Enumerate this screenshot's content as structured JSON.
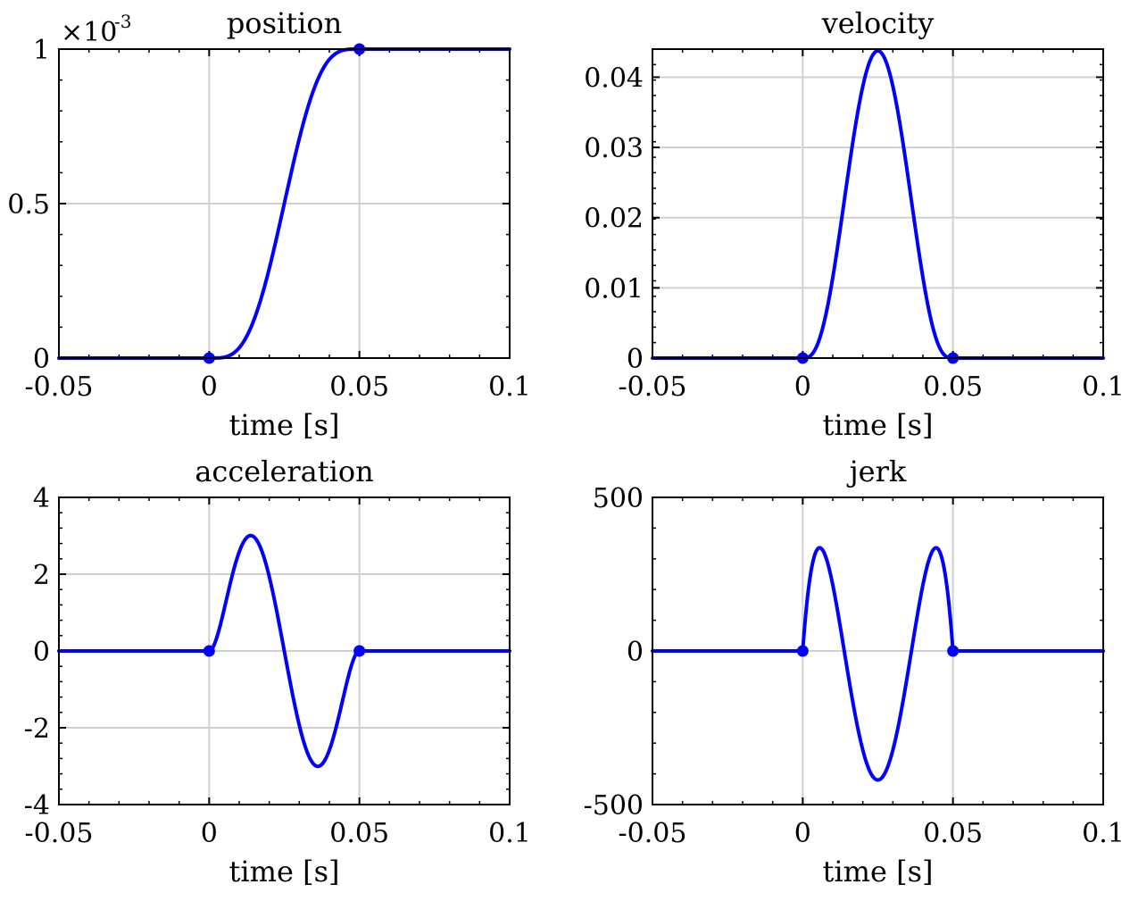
{
  "figure": {
    "line_color": "#0000ff",
    "grid_color": "#d0d0d0",
    "axis_color": "#000000"
  },
  "chart_data": [
    {
      "type": "line",
      "title": "position",
      "xlabel": "time [s]",
      "ylabel": "",
      "xlim": [
        -0.05,
        0.1
      ],
      "ylim": [
        0,
        0.001
      ],
      "y_exponent_base": "×10",
      "y_exponent_power": "-3",
      "xticks": [
        -0.05,
        0,
        0.05,
        0.1
      ],
      "xtick_labels": [
        "-0.05",
        "0",
        "0.05",
        "0.1"
      ],
      "yticks": [
        0,
        0.0005,
        0.001
      ],
      "ytick_labels": [
        "0",
        "0.5",
        "1"
      ],
      "grid": true,
      "curve": "position",
      "markers": [
        {
          "x": 0,
          "y": 0
        },
        {
          "x": 0.05,
          "y": 0.001
        }
      ]
    },
    {
      "type": "line",
      "title": "velocity",
      "xlabel": "time [s]",
      "ylabel": "",
      "xlim": [
        -0.05,
        0.1
      ],
      "ylim": [
        0,
        0.044
      ],
      "xticks": [
        -0.05,
        0,
        0.05,
        0.1
      ],
      "xtick_labels": [
        "-0.05",
        "0",
        "0.05",
        "0.1"
      ],
      "yticks": [
        0,
        0.01,
        0.02,
        0.03,
        0.04
      ],
      "ytick_labels": [
        "0",
        "0.01",
        "0.02",
        "0.03",
        "0.04"
      ],
      "grid": true,
      "curve": "velocity",
      "markers": [
        {
          "x": 0,
          "y": 0
        },
        {
          "x": 0.05,
          "y": 0
        }
      ]
    },
    {
      "type": "line",
      "title": "acceleration",
      "xlabel": "time [s]",
      "ylabel": "",
      "xlim": [
        -0.05,
        0.1
      ],
      "ylim": [
        -4,
        4
      ],
      "xticks": [
        -0.05,
        0,
        0.05,
        0.1
      ],
      "xtick_labels": [
        "-0.05",
        "0",
        "0.05",
        "0.1"
      ],
      "yticks": [
        -4,
        -2,
        0,
        2,
        4
      ],
      "ytick_labels": [
        "-4",
        "-2",
        "0",
        "2",
        "4"
      ],
      "grid": true,
      "curve": "acceleration",
      "markers": [
        {
          "x": 0,
          "y": 0
        },
        {
          "x": 0.05,
          "y": 0
        }
      ]
    },
    {
      "type": "line",
      "title": "jerk",
      "xlabel": "time [s]",
      "ylabel": "",
      "xlim": [
        -0.05,
        0.1
      ],
      "ylim": [
        -500,
        500
      ],
      "xticks": [
        -0.05,
        0,
        0.05,
        0.1
      ],
      "xtick_labels": [
        "-0.05",
        "0",
        "0.05",
        "0.1"
      ],
      "yticks": [
        -500,
        0,
        500
      ],
      "ytick_labels": [
        "-500",
        "0",
        "500"
      ],
      "grid": true,
      "curve": "jerk",
      "markers": [
        {
          "x": 0,
          "y": 0
        },
        {
          "x": 0.05,
          "y": 0
        }
      ]
    }
  ],
  "motion_profile": {
    "distance": 0.001,
    "duration": 0.05,
    "start_time": 0,
    "sample_step": 0.00025
  }
}
